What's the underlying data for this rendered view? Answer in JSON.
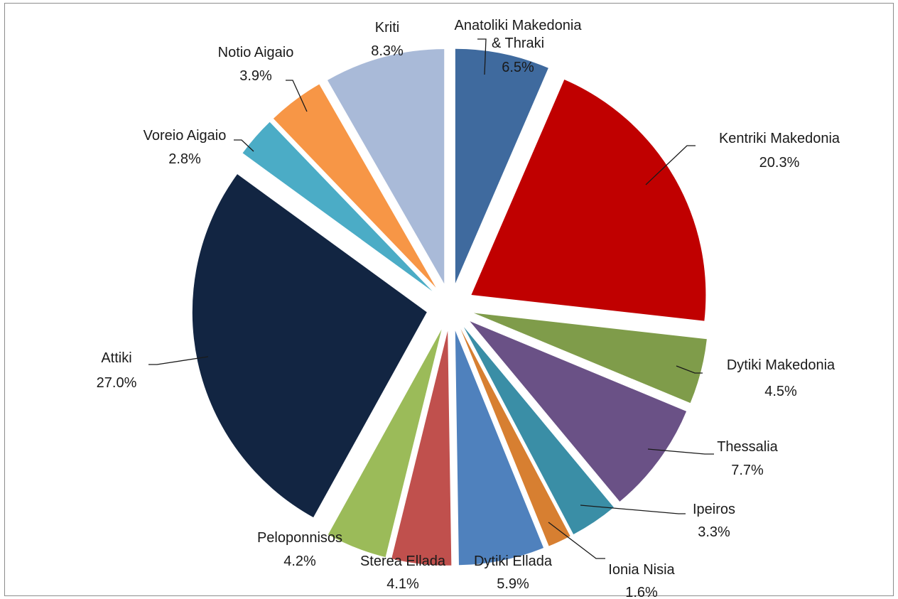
{
  "chart_data": {
    "type": "pie",
    "title": "",
    "legend": "none",
    "slices": [
      {
        "label_lines": [
          "Anatoliki Makedonia",
          "& Thraki"
        ],
        "value_text": "6.5%",
        "value": 6.5,
        "color": "#3f6a9e"
      },
      {
        "label_lines": [
          "Kentriki Makedonia"
        ],
        "value_text": "20.3%",
        "value": 20.3,
        "color": "#c00000"
      },
      {
        "label_lines": [
          "Dytiki Makedonia"
        ],
        "value_text": "4.5%",
        "value": 4.5,
        "color": "#7f9c4a"
      },
      {
        "label_lines": [
          "Thessalia"
        ],
        "value_text": "7.7%",
        "value": 7.7,
        "color": "#6a5186"
      },
      {
        "label_lines": [
          "Ipeiros"
        ],
        "value_text": "3.3%",
        "value": 3.3,
        "color": "#3a8ea6"
      },
      {
        "label_lines": [
          "Ionia Nisia"
        ],
        "value_text": "1.6%",
        "value": 1.6,
        "color": "#d77f31"
      },
      {
        "label_lines": [
          "Dytiki Ellada"
        ],
        "value_text": "5.9%",
        "value": 5.9,
        "color": "#4f81bd"
      },
      {
        "label_lines": [
          "Sterea Ellada"
        ],
        "value_text": "4.1%",
        "value": 4.1,
        "color": "#c0504d"
      },
      {
        "label_lines": [
          "Peloponnisos"
        ],
        "value_text": "4.2%",
        "value": 4.2,
        "color": "#9bbb59"
      },
      {
        "label_lines": [
          "Attiki"
        ],
        "value_text": "27.0%",
        "value": 27.0,
        "color": "#122542"
      },
      {
        "label_lines": [
          "Voreio Aigaio"
        ],
        "value_text": "2.8%",
        "value": 2.8,
        "color": "#4bacc6"
      },
      {
        "label_lines": [
          "Notio Aigaio"
        ],
        "value_text": "3.9%",
        "value": 3.9,
        "color": "#f79646"
      },
      {
        "label_lines": [
          "Kriti"
        ],
        "value_text": "8.3%",
        "value": 8.3,
        "color": "#a9bad8"
      }
    ]
  }
}
